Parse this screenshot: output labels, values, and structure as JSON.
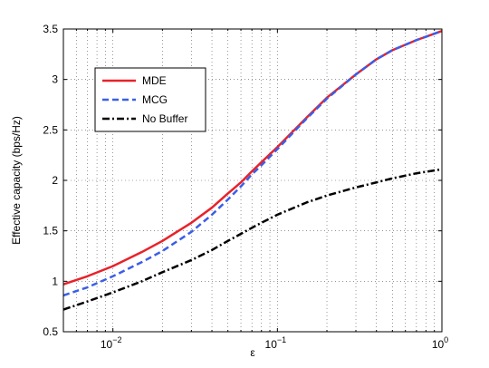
{
  "chart_data": {
    "type": "line",
    "xlabel": "ε",
    "ylabel": "Effective capacity (bps/Hz)",
    "xscale": "log",
    "xlim": [
      0.005,
      1
    ],
    "ylim": [
      0.5,
      3.5
    ],
    "grid": true,
    "legend_position": "top-left",
    "y_ticks": [
      "0.5",
      "1",
      "1.5",
      "2",
      "2.5",
      "3",
      "3.5"
    ],
    "x_ticks": [
      {
        "value": 0.01,
        "base": "10",
        "exp": "−2"
      },
      {
        "value": 0.1,
        "base": "10",
        "exp": "−1"
      },
      {
        "value": 1,
        "base": "10",
        "exp": "0"
      }
    ],
    "series": [
      {
        "name": "MDE",
        "color": "#e8222a",
        "style": "solid",
        "x": [
          0.005,
          0.007,
          0.01,
          0.015,
          0.02,
          0.03,
          0.04,
          0.05,
          0.06,
          0.07,
          0.08,
          0.1,
          0.15,
          0.2,
          0.3,
          0.4,
          0.5,
          0.7,
          1.0
        ],
        "y": [
          0.97,
          1.05,
          1.15,
          1.29,
          1.4,
          1.58,
          1.73,
          1.87,
          1.98,
          2.09,
          2.18,
          2.33,
          2.62,
          2.82,
          3.05,
          3.2,
          3.29,
          3.39,
          3.48
        ]
      },
      {
        "name": "MCG",
        "color": "#3b5ee8",
        "style": "dashed",
        "x": [
          0.005,
          0.007,
          0.01,
          0.015,
          0.02,
          0.03,
          0.04,
          0.05,
          0.06,
          0.07,
          0.08,
          0.1,
          0.15,
          0.2,
          0.3,
          0.4,
          0.5,
          0.7,
          1.0
        ],
        "y": [
          0.86,
          0.94,
          1.05,
          1.19,
          1.3,
          1.49,
          1.66,
          1.81,
          1.94,
          2.06,
          2.15,
          2.31,
          2.61,
          2.81,
          3.05,
          3.2,
          3.29,
          3.39,
          3.48
        ]
      },
      {
        "name": "No Buffer",
        "color": "#000000",
        "style": "dashdot",
        "x": [
          0.005,
          0.007,
          0.01,
          0.015,
          0.02,
          0.03,
          0.04,
          0.05,
          0.06,
          0.07,
          0.08,
          0.1,
          0.15,
          0.2,
          0.3,
          0.4,
          0.5,
          0.7,
          1.0
        ],
        "y": [
          0.72,
          0.8,
          0.89,
          1.0,
          1.09,
          1.21,
          1.31,
          1.4,
          1.47,
          1.53,
          1.58,
          1.66,
          1.78,
          1.85,
          1.93,
          1.98,
          2.02,
          2.07,
          2.11
        ]
      }
    ]
  }
}
